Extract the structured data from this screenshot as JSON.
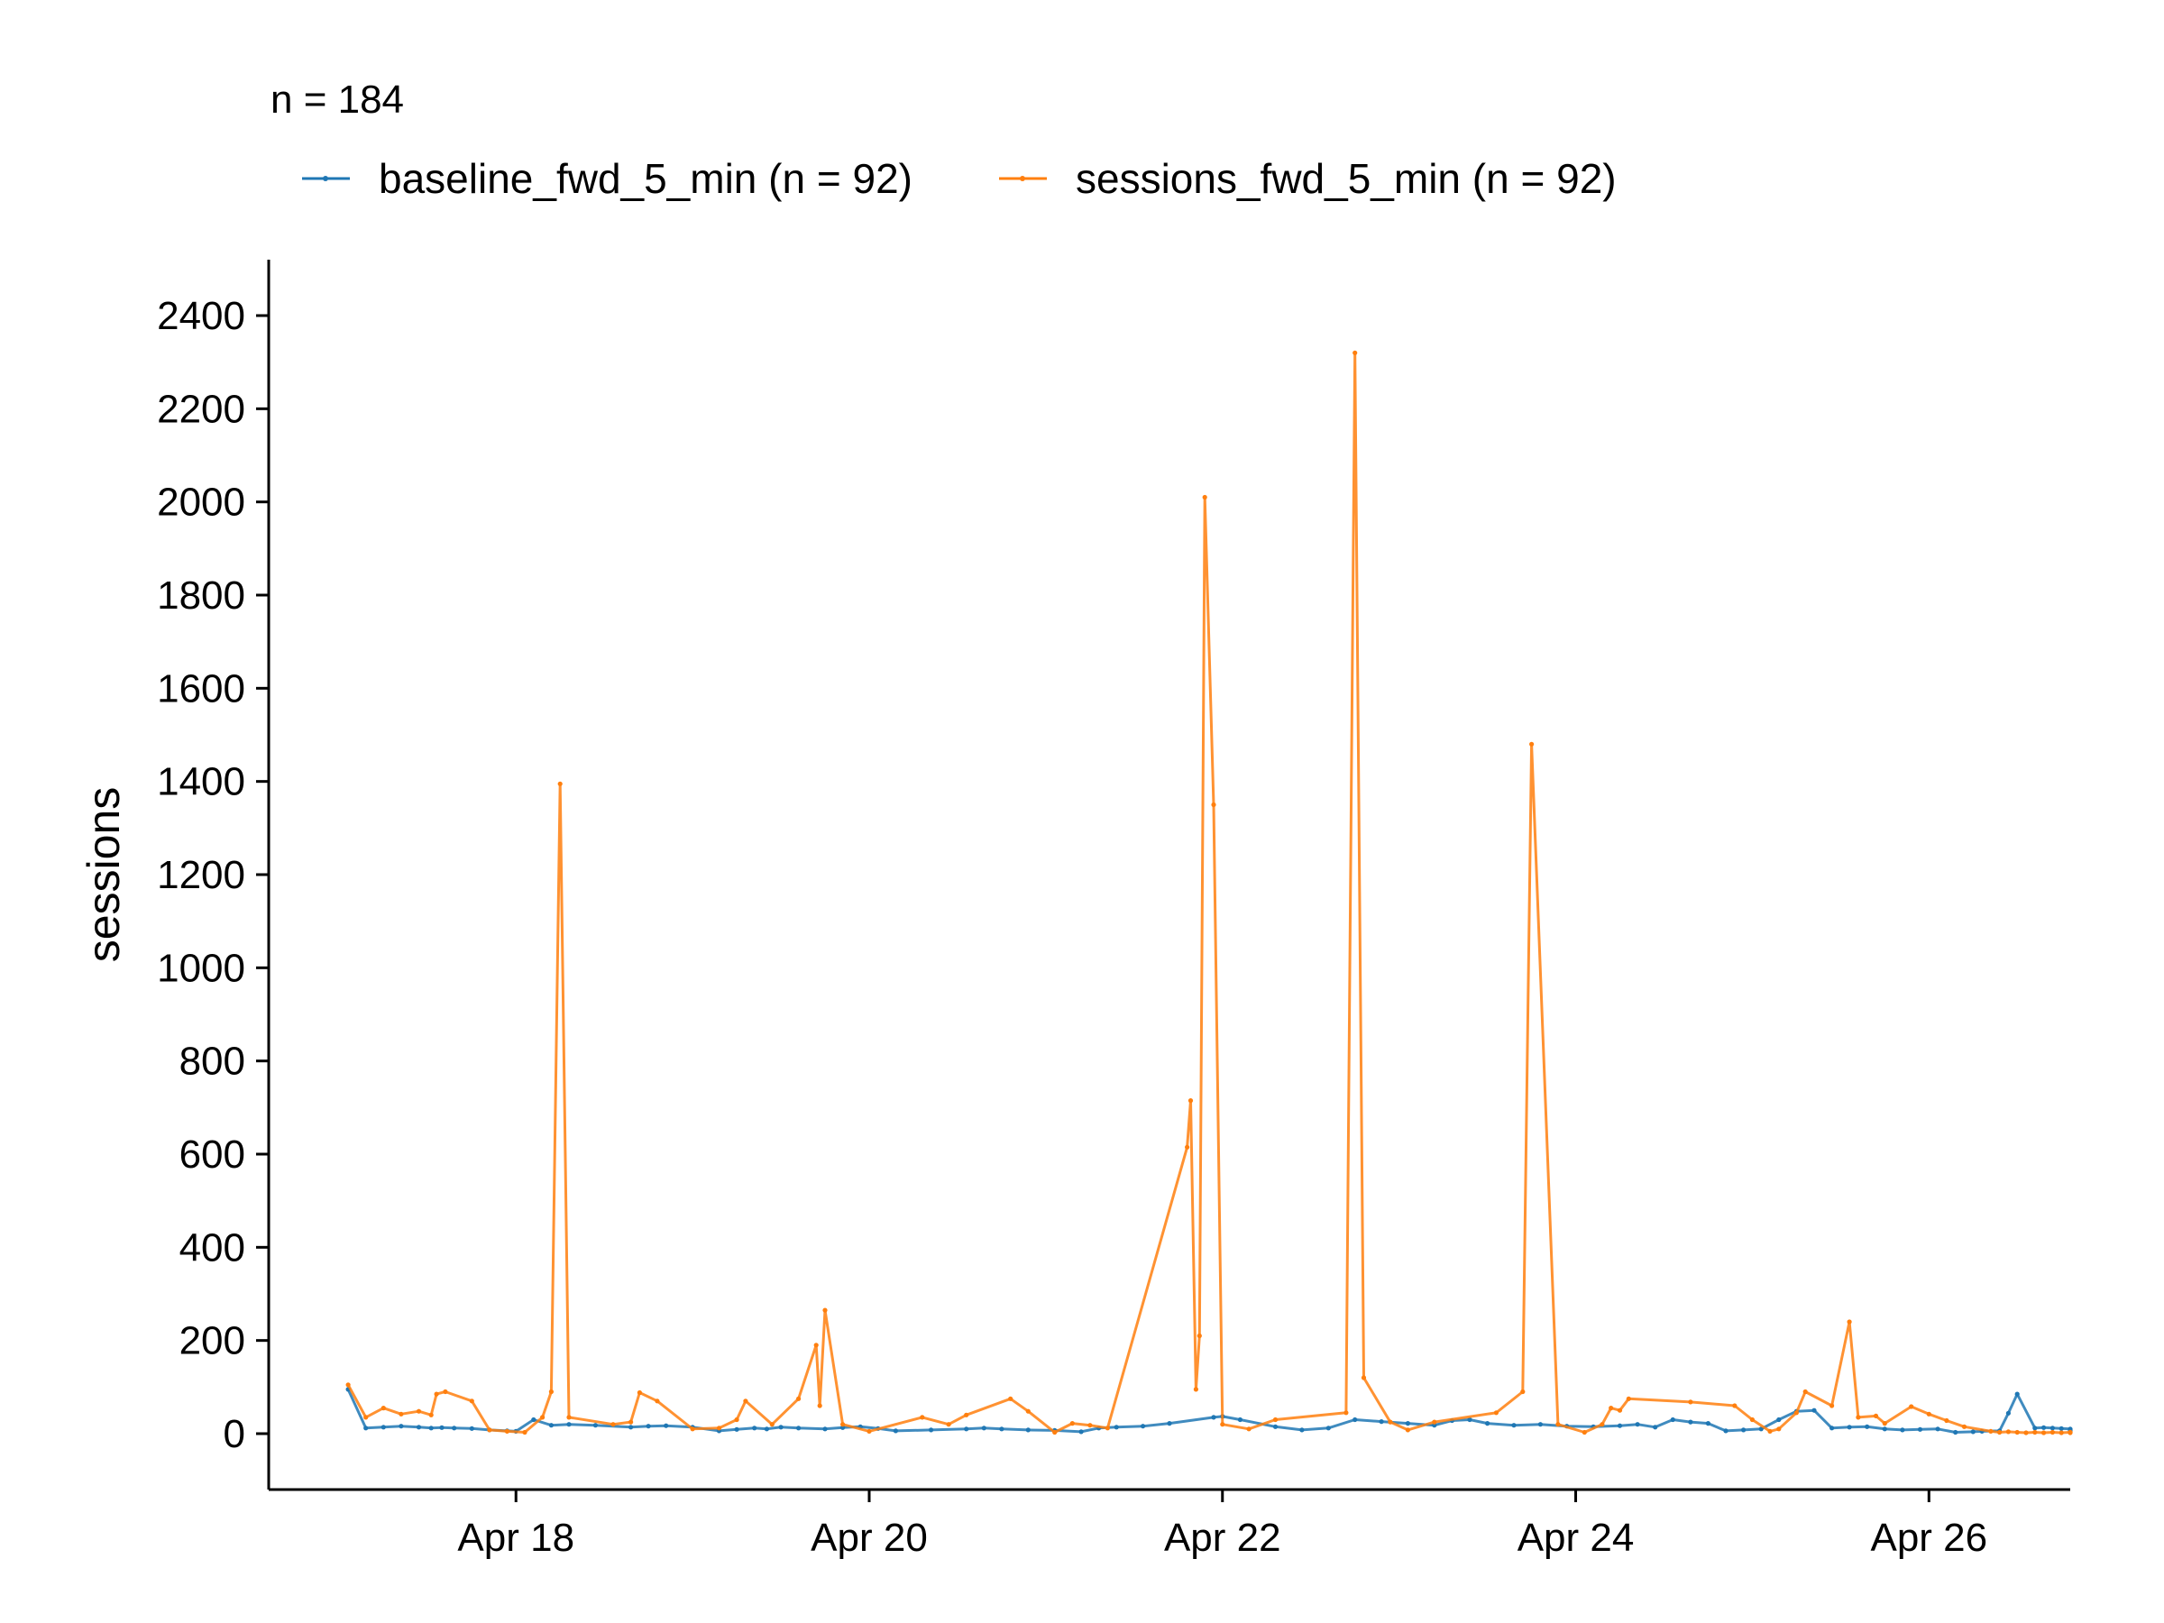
{
  "chart_data": {
    "type": "line",
    "subtitle": "n = 184",
    "xlabel": "",
    "ylabel": "sessions",
    "x_ticks": [
      "Apr 18",
      "Apr 20",
      "Apr 22",
      "Apr 24",
      "Apr 26"
    ],
    "x_tick_days": [
      18,
      20,
      22,
      24,
      26
    ],
    "xlim_days": [
      16.6,
      26.8
    ],
    "y_ticks": [
      0,
      200,
      400,
      600,
      800,
      1000,
      1200,
      1400,
      1600,
      1800,
      2000,
      2200,
      2400
    ],
    "ylim": [
      -120,
      2520
    ],
    "grid": false,
    "legend_position": "top-left",
    "series": [
      {
        "name": "baseline_fwd_5_min (n = 92)",
        "color": "#1f77b4",
        "points": [
          [
            17.05,
            95
          ],
          [
            17.15,
            12
          ],
          [
            17.25,
            14
          ],
          [
            17.35,
            16
          ],
          [
            17.45,
            14
          ],
          [
            17.52,
            12
          ],
          [
            17.58,
            13
          ],
          [
            17.65,
            12
          ],
          [
            17.75,
            11
          ],
          [
            17.85,
            8
          ],
          [
            17.95,
            6
          ],
          [
            18.0,
            5
          ],
          [
            18.1,
            30
          ],
          [
            18.2,
            18
          ],
          [
            18.3,
            20
          ],
          [
            18.45,
            18
          ],
          [
            18.65,
            14
          ],
          [
            18.75,
            16
          ],
          [
            18.85,
            17
          ],
          [
            19.0,
            14
          ],
          [
            19.15,
            6
          ],
          [
            19.25,
            9
          ],
          [
            19.35,
            12
          ],
          [
            19.42,
            10
          ],
          [
            19.5,
            14
          ],
          [
            19.6,
            12
          ],
          [
            19.75,
            10
          ],
          [
            19.85,
            13
          ],
          [
            19.95,
            15
          ],
          [
            20.05,
            11
          ],
          [
            20.15,
            6
          ],
          [
            20.35,
            8
          ],
          [
            20.55,
            10
          ],
          [
            20.65,
            12
          ],
          [
            20.75,
            10
          ],
          [
            20.9,
            8
          ],
          [
            21.05,
            7
          ],
          [
            21.2,
            4
          ],
          [
            21.3,
            12
          ],
          [
            21.4,
            14
          ],
          [
            21.55,
            16
          ],
          [
            21.7,
            22
          ],
          [
            21.95,
            35
          ],
          [
            22.0,
            37
          ],
          [
            22.1,
            30
          ],
          [
            22.3,
            15
          ],
          [
            22.45,
            8
          ],
          [
            22.6,
            12
          ],
          [
            22.75,
            30
          ],
          [
            22.9,
            26
          ],
          [
            23.05,
            22
          ],
          [
            23.2,
            18
          ],
          [
            23.3,
            28
          ],
          [
            23.4,
            30
          ],
          [
            23.5,
            22
          ],
          [
            23.65,
            18
          ],
          [
            23.8,
            20
          ],
          [
            23.95,
            16
          ],
          [
            24.1,
            15
          ],
          [
            24.25,
            17
          ],
          [
            24.35,
            20
          ],
          [
            24.45,
            14
          ],
          [
            24.55,
            30
          ],
          [
            24.65,
            25
          ],
          [
            24.75,
            22
          ],
          [
            24.85,
            6
          ],
          [
            24.95,
            8
          ],
          [
            25.05,
            10
          ],
          [
            25.15,
            30
          ],
          [
            25.25,
            48
          ],
          [
            25.35,
            50
          ],
          [
            25.45,
            12
          ],
          [
            25.55,
            14
          ],
          [
            25.65,
            15
          ],
          [
            25.75,
            10
          ],
          [
            25.85,
            8
          ],
          [
            25.95,
            9
          ],
          [
            26.05,
            10
          ],
          [
            26.15,
            3
          ],
          [
            26.25,
            4
          ],
          [
            26.3,
            5
          ],
          [
            26.4,
            6
          ],
          [
            26.45,
            44
          ],
          [
            26.5,
            85
          ],
          [
            26.6,
            12
          ],
          [
            26.65,
            13
          ],
          [
            26.7,
            12
          ],
          [
            26.75,
            11
          ],
          [
            26.8,
            10
          ],
          [
            26.8,
            8
          ],
          [
            26.8,
            6
          ],
          [
            26.8,
            5
          ]
        ]
      },
      {
        "name": "sessions_fwd_5_min (n = 92)",
        "color": "#ff7f0e",
        "points": [
          [
            17.05,
            105
          ],
          [
            17.15,
            35
          ],
          [
            17.25,
            55
          ],
          [
            17.35,
            42
          ],
          [
            17.45,
            48
          ],
          [
            17.52,
            40
          ],
          [
            17.55,
            85
          ],
          [
            17.6,
            90
          ],
          [
            17.75,
            70
          ],
          [
            17.85,
            8
          ],
          [
            17.95,
            5
          ],
          [
            18.05,
            3
          ],
          [
            18.15,
            35
          ],
          [
            18.2,
            90
          ],
          [
            18.25,
            1395
          ],
          [
            18.3,
            35
          ],
          [
            18.55,
            20
          ],
          [
            18.65,
            25
          ],
          [
            18.7,
            88
          ],
          [
            18.8,
            70
          ],
          [
            19.0,
            10
          ],
          [
            19.15,
            12
          ],
          [
            19.25,
            30
          ],
          [
            19.3,
            70
          ],
          [
            19.45,
            20
          ],
          [
            19.6,
            75
          ],
          [
            19.7,
            190
          ],
          [
            19.72,
            60
          ],
          [
            19.75,
            265
          ],
          [
            19.85,
            20
          ],
          [
            20.0,
            5
          ],
          [
            20.3,
            35
          ],
          [
            20.45,
            20
          ],
          [
            20.55,
            40
          ],
          [
            20.8,
            75
          ],
          [
            20.9,
            48
          ],
          [
            21.05,
            3
          ],
          [
            21.15,
            22
          ],
          [
            21.25,
            18
          ],
          [
            21.35,
            12
          ],
          [
            21.8,
            615
          ],
          [
            21.82,
            715
          ],
          [
            21.85,
            95
          ],
          [
            21.87,
            210
          ],
          [
            21.9,
            2010
          ],
          [
            21.95,
            1350
          ],
          [
            22.0,
            20
          ],
          [
            22.15,
            10
          ],
          [
            22.3,
            30
          ],
          [
            22.7,
            45
          ],
          [
            22.75,
            2320
          ],
          [
            22.8,
            120
          ],
          [
            22.95,
            25
          ],
          [
            23.05,
            8
          ],
          [
            23.2,
            25
          ],
          [
            23.55,
            45
          ],
          [
            23.7,
            90
          ],
          [
            23.75,
            1480
          ],
          [
            23.9,
            20
          ],
          [
            24.05,
            3
          ],
          [
            24.15,
            20
          ],
          [
            24.2,
            55
          ],
          [
            24.25,
            50
          ],
          [
            24.3,
            75
          ],
          [
            24.65,
            68
          ],
          [
            24.9,
            60
          ],
          [
            25.0,
            30
          ],
          [
            25.1,
            5
          ],
          [
            25.15,
            10
          ],
          [
            25.25,
            45
          ],
          [
            25.3,
            90
          ],
          [
            25.45,
            60
          ],
          [
            25.55,
            240
          ],
          [
            25.6,
            35
          ],
          [
            25.7,
            38
          ],
          [
            25.75,
            22
          ],
          [
            25.9,
            58
          ],
          [
            26.0,
            42
          ],
          [
            26.1,
            28
          ],
          [
            26.2,
            15
          ],
          [
            26.35,
            5
          ],
          [
            26.4,
            3
          ],
          [
            26.45,
            4
          ],
          [
            26.5,
            3
          ],
          [
            26.55,
            2
          ],
          [
            26.6,
            3
          ],
          [
            26.65,
            2
          ],
          [
            26.7,
            3
          ],
          [
            26.75,
            2
          ],
          [
            26.8,
            3
          ],
          [
            26.8,
            2
          ],
          [
            26.8,
            3
          ]
        ]
      }
    ]
  }
}
